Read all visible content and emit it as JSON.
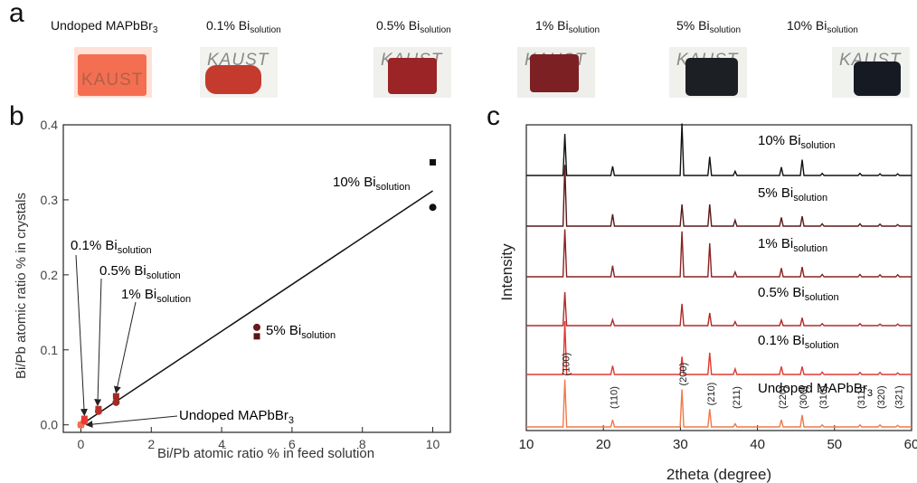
{
  "panel_a": {
    "letter": "a",
    "watermark": "KAUST",
    "samples": [
      {
        "base": "Undoped MAPbBr",
        "sub": "3",
        "crystal_color": "#f25a3a",
        "bg": "#ffe1d6"
      },
      {
        "base": "0.1% Bi",
        "sub": "solution",
        "crystal_color": "#c43a2c",
        "bg": "#f2f2ee"
      },
      {
        "base": "0.5% Bi",
        "sub": "solution",
        "crystal_color": "#9a2426",
        "bg": "#f0f0ec"
      },
      {
        "base": "1% Bi",
        "sub": "solution",
        "crystal_color": "#7c2024",
        "bg": "#eeeeea"
      },
      {
        "base": "5% Bi",
        "sub": "solution",
        "crystal_color": "#1c1f24",
        "bg": "#f0f0ec"
      },
      {
        "base": "10% Bi",
        "sub": "solution",
        "crystal_color": "#161a22",
        "bg": "#f0f2ee"
      }
    ]
  },
  "chart_data": [
    {
      "panel_letter": "b",
      "type": "scatter",
      "xlabel": "Bi/Pb atomic ratio % in feed solution",
      "ylabel": "Bi/Pb atomic ratio % in crystals",
      "xlim": [
        -0.5,
        10.5
      ],
      "ylim": [
        -0.01,
        0.4
      ],
      "xticks": [
        0,
        2,
        4,
        6,
        8,
        10
      ],
      "yticks": [
        0.0,
        0.1,
        0.2,
        0.3,
        0.4
      ],
      "series": [
        {
          "marker": "square",
          "points": [
            {
              "x": 0,
              "y": 0.0,
              "color": "#f07050"
            },
            {
              "x": 0.1,
              "y": 0.008,
              "color": "#e63a32"
            },
            {
              "x": 0.5,
              "y": 0.021,
              "color": "#b8302c"
            },
            {
              "x": 1,
              "y": 0.038,
              "color": "#a02a28"
            },
            {
              "x": 5,
              "y": 0.118,
              "color": "#5a1414"
            },
            {
              "x": 10,
              "y": 0.35,
              "color": "#111111"
            }
          ]
        },
        {
          "marker": "circle",
          "points": [
            {
              "x": 0,
              "y": 0.0,
              "color": "#f07050"
            },
            {
              "x": 0.1,
              "y": 0.005,
              "color": "#e63a32"
            },
            {
              "x": 0.5,
              "y": 0.018,
              "color": "#b8302c"
            },
            {
              "x": 1,
              "y": 0.03,
              "color": "#a02a28"
            },
            {
              "x": 5,
              "y": 0.13,
              "color": "#6a1a1a"
            },
            {
              "x": 10,
              "y": 0.29,
              "color": "#111111"
            }
          ]
        }
      ],
      "fit_line": {
        "x": [
          0,
          10
        ],
        "y": [
          0.0,
          0.312
        ]
      },
      "annotations": [
        {
          "base": "10% Bi",
          "sub": "solution"
        },
        {
          "base": "5% Bi",
          "sub": "solution"
        },
        {
          "base": "0.1% Bi",
          "sub": "solution"
        },
        {
          "base": "0.5% Bi",
          "sub": "solution"
        },
        {
          "base": "1% Bi",
          "sub": "solution"
        },
        {
          "base": "Undoped MAPbBr",
          "sub": "3"
        }
      ]
    },
    {
      "panel_letter": "c",
      "type": "line",
      "xlabel": "2theta (degree)",
      "ylabel": "Intensity",
      "xlim": [
        10,
        60
      ],
      "xticks": [
        10,
        20,
        30,
        40,
        50,
        60
      ],
      "peaks": [
        {
          "x": 15.0,
          "label": "(100)",
          "rel": 1.0
        },
        {
          "x": 21.2,
          "label": "(110)",
          "rel": 0.22
        },
        {
          "x": 30.2,
          "label": "(200)",
          "rel": 0.9
        },
        {
          "x": 33.8,
          "label": "(210)",
          "rel": 0.45
        },
        {
          "x": 37.1,
          "label": "(211)",
          "rel": 0.12
        },
        {
          "x": 43.1,
          "label": "(220)",
          "rel": 0.18
        },
        {
          "x": 45.8,
          "label": "(300)",
          "rel": 0.3
        },
        {
          "x": 48.4,
          "label": "(310)",
          "rel": 0.06
        },
        {
          "x": 53.3,
          "label": "(311)",
          "rel": 0.05
        },
        {
          "x": 55.9,
          "label": "(320)",
          "rel": 0.05
        },
        {
          "x": 58.2,
          "label": "(321)",
          "rel": 0.04
        }
      ],
      "series": [
        {
          "label": {
            "base": "10%  Bi",
            "sub": "solution"
          },
          "color": "#111111",
          "peak_heights": [
            1.0,
            0.22,
            1.25,
            0.45,
            0.1,
            0.2,
            0.38,
            0.05,
            0.05,
            0.04,
            0.04
          ]
        },
        {
          "label": {
            "base": "5%   Bi",
            "sub": "solution"
          },
          "color": "#5a1818",
          "peak_heights": [
            1.55,
            0.3,
            0.55,
            0.55,
            0.15,
            0.22,
            0.25,
            0.06,
            0.06,
            0.05,
            0.04
          ]
        },
        {
          "label": {
            "base": "1%   Bi",
            "sub": "solution"
          },
          "color": "#8a2222",
          "peak_heights": [
            1.2,
            0.28,
            1.15,
            0.85,
            0.12,
            0.22,
            0.25,
            0.06,
            0.06,
            0.05,
            0.05
          ]
        },
        {
          "label": {
            "base": "0.5% Bi",
            "sub": "solution"
          },
          "color": "#b02a28",
          "peak_heights": [
            0.85,
            0.15,
            0.55,
            0.32,
            0.1,
            0.14,
            0.2,
            0.05,
            0.05,
            0.04,
            0.04
          ]
        },
        {
          "label": {
            "base": "0.1% Bi",
            "sub": "solution"
          },
          "color": "#e03a30",
          "peak_heights": [
            1.35,
            0.22,
            0.45,
            0.55,
            0.14,
            0.2,
            0.2,
            0.06,
            0.05,
            0.05,
            0.04
          ]
        },
        {
          "label": {
            "base": "Undoped MAPbBr",
            "sub": "3"
          },
          "color": "#f07848",
          "peak_heights": [
            1.2,
            0.18,
            0.95,
            0.45,
            0.08,
            0.18,
            0.3,
            0.05,
            0.05,
            0.05,
            0.04
          ]
        }
      ]
    }
  ]
}
